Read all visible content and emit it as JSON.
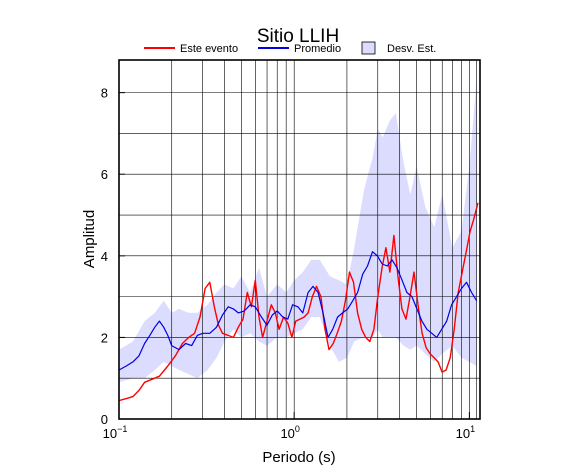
{
  "chart_data": {
    "type": "line",
    "title": "Sitio LLIH",
    "xlabel": "Periodo (s)",
    "ylabel": "Amplitud",
    "x_scale": "log",
    "xlim": [
      0.1,
      11.5
    ],
    "ylim": [
      0,
      8.8
    ],
    "grid": true,
    "legend_position": "top",
    "x_ticks": [
      {
        "base": "10",
        "exp": "−1",
        "value": 0.1
      },
      {
        "base": "10",
        "exp": "0",
        "value": 1
      },
      {
        "base": "10",
        "exp": "1",
        "value": 10
      }
    ],
    "y_ticks": [
      0,
      2,
      4,
      6,
      8
    ],
    "legend": [
      {
        "label": "Este evento",
        "kind": "line",
        "color": "#ff0000"
      },
      {
        "label": "Promedio",
        "kind": "line",
        "color": "#0000e6"
      },
      {
        "label": "Desv. Est.",
        "kind": "box",
        "color": "#dcdcff"
      }
    ],
    "series": [
      {
        "name": "Este evento",
        "color": "#ff0000",
        "x": [
          0.1,
          0.11,
          0.12,
          0.13,
          0.14,
          0.15,
          0.17,
          0.19,
          0.21,
          0.23,
          0.25,
          0.27,
          0.29,
          0.31,
          0.33,
          0.35,
          0.37,
          0.39,
          0.42,
          0.45,
          0.48,
          0.51,
          0.54,
          0.57,
          0.6,
          0.63,
          0.66,
          0.7,
          0.74,
          0.78,
          0.82,
          0.87,
          0.92,
          0.97,
          1.02,
          1.08,
          1.14,
          1.2,
          1.27,
          1.34,
          1.42,
          1.5,
          1.58,
          1.67,
          1.76,
          1.86,
          1.96,
          2.07,
          2.18,
          2.3,
          2.43,
          2.56,
          2.7,
          2.85,
          3.0,
          3.17,
          3.34,
          3.52,
          3.71,
          3.91,
          4.12,
          4.35,
          4.58,
          4.83,
          5.09,
          5.37,
          5.66,
          5.97,
          6.29,
          6.63,
          6.99,
          7.37,
          7.77,
          8.19,
          8.63,
          9.1,
          9.59,
          10.1,
          10.6,
          11.2
        ],
        "values": [
          0.45,
          0.5,
          0.55,
          0.7,
          0.9,
          0.95,
          1.05,
          1.3,
          1.55,
          1.85,
          2.0,
          2.1,
          2.5,
          3.2,
          3.35,
          2.75,
          2.3,
          2.1,
          2.05,
          2.0,
          2.25,
          2.45,
          3.1,
          2.75,
          3.4,
          2.5,
          2.0,
          2.4,
          2.8,
          2.6,
          2.2,
          2.5,
          2.35,
          2.0,
          2.4,
          2.45,
          2.5,
          2.6,
          3.0,
          3.25,
          3.0,
          2.2,
          1.7,
          1.85,
          2.1,
          2.4,
          2.9,
          3.6,
          3.35,
          2.6,
          2.2,
          2.0,
          1.9,
          2.2,
          3.0,
          3.7,
          4.2,
          3.6,
          4.5,
          3.5,
          2.7,
          2.45,
          3.0,
          3.6,
          2.8,
          2.1,
          1.75,
          1.6,
          1.5,
          1.4,
          1.15,
          1.2,
          1.5,
          2.2,
          3.1,
          3.6,
          4.1,
          4.6,
          4.9,
          5.3
        ]
      },
      {
        "name": "Promedio",
        "color": "#0000e6",
        "x": [
          0.1,
          0.11,
          0.12,
          0.13,
          0.14,
          0.15,
          0.16,
          0.17,
          0.18,
          0.19,
          0.2,
          0.22,
          0.24,
          0.26,
          0.28,
          0.3,
          0.33,
          0.36,
          0.39,
          0.42,
          0.45,
          0.48,
          0.52,
          0.56,
          0.6,
          0.65,
          0.7,
          0.75,
          0.8,
          0.86,
          0.92,
          0.98,
          1.05,
          1.12,
          1.2,
          1.28,
          1.37,
          1.46,
          1.56,
          1.66,
          1.77,
          1.89,
          2.02,
          2.16,
          2.3,
          2.46,
          2.62,
          2.8,
          2.98,
          3.18,
          3.4,
          3.62,
          3.87,
          4.13,
          4.4,
          4.7,
          5.02,
          5.36,
          5.72,
          6.1,
          6.51,
          6.95,
          7.42,
          7.92,
          8.45,
          9.02,
          9.63,
          10.3,
          11.0
        ],
        "values": [
          1.2,
          1.3,
          1.4,
          1.55,
          1.85,
          2.05,
          2.25,
          2.4,
          2.25,
          2.05,
          1.8,
          1.7,
          1.85,
          1.8,
          2.05,
          2.1,
          2.1,
          2.25,
          2.55,
          2.75,
          2.7,
          2.6,
          2.65,
          2.8,
          2.75,
          2.5,
          2.3,
          2.55,
          2.65,
          2.5,
          2.45,
          2.8,
          2.75,
          2.6,
          3.1,
          3.25,
          3.1,
          2.6,
          2.0,
          2.2,
          2.5,
          2.6,
          2.7,
          2.9,
          3.1,
          3.55,
          3.75,
          4.1,
          4.0,
          3.8,
          3.75,
          3.9,
          3.7,
          3.4,
          3.1,
          3.0,
          2.7,
          2.4,
          2.2,
          2.1,
          2.0,
          2.2,
          2.4,
          2.8,
          3.0,
          3.2,
          3.35,
          3.1,
          2.9
        ]
      }
    ],
    "band": {
      "name": "Desv. Est.",
      "color": "#dcdcff",
      "x": [
        0.1,
        0.12,
        0.14,
        0.16,
        0.18,
        0.2,
        0.22,
        0.25,
        0.28,
        0.32,
        0.36,
        0.4,
        0.45,
        0.5,
        0.56,
        0.63,
        0.7,
        0.8,
        0.9,
        1.0,
        1.12,
        1.25,
        1.4,
        1.6,
        1.8,
        2.0,
        2.2,
        2.5,
        2.8,
        3.0,
        3.2,
        3.5,
        3.8,
        4.2,
        4.6,
        5.0,
        5.6,
        6.3,
        7.0,
        8.0,
        9.0,
        10.0,
        11.0
      ],
      "upper": [
        1.7,
        1.9,
        2.4,
        2.6,
        2.9,
        2.6,
        2.7,
        2.6,
        2.6,
        2.8,
        3.1,
        3.3,
        3.2,
        3.5,
        3.1,
        3.7,
        3.0,
        3.3,
        3.1,
        3.4,
        3.6,
        3.9,
        3.9,
        3.5,
        3.4,
        3.3,
        4.2,
        5.6,
        6.4,
        7.1,
        6.9,
        7.3,
        7.5,
        6.3,
        5.5,
        6.2,
        5.2,
        4.7,
        5.5,
        4.2,
        4.6,
        6.2,
        8.3
      ],
      "lower": [
        0.9,
        1.0,
        1.0,
        1.2,
        1.4,
        1.3,
        1.2,
        1.1,
        1.0,
        1.2,
        1.5,
        1.9,
        2.2,
        2.0,
        2.1,
        1.9,
        1.8,
        2.0,
        2.0,
        2.1,
        2.2,
        2.5,
        2.5,
        1.8,
        1.4,
        1.5,
        1.9,
        2.0,
        2.0,
        2.2,
        2.0,
        2.0,
        2.0,
        1.8,
        1.7,
        1.8,
        1.6,
        1.4,
        1.6,
        1.8,
        1.5,
        1.4,
        1.3
      ]
    }
  }
}
